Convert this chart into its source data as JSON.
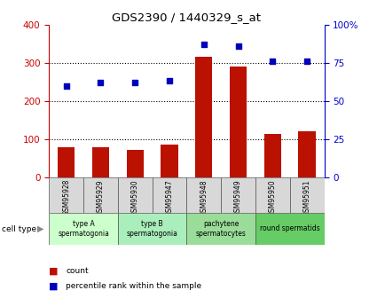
{
  "title": "GDS2390 / 1440329_s_at",
  "samples": [
    "GSM95928",
    "GSM95929",
    "GSM95930",
    "GSM95947",
    "GSM95948",
    "GSM95949",
    "GSM95950",
    "GSM95951"
  ],
  "counts": [
    78,
    78,
    73,
    85,
    315,
    290,
    115,
    120
  ],
  "percentile_ranks": [
    60,
    62,
    62,
    63,
    87,
    86,
    76,
    76
  ],
  "cell_types": [
    {
      "label": "type A\nspermatogonia",
      "span": [
        0,
        2
      ],
      "color": "#ccffcc"
    },
    {
      "label": "type B\nspermatogonia",
      "span": [
        2,
        4
      ],
      "color": "#aaeebb"
    },
    {
      "label": "pachytene\nspermatocytes",
      "span": [
        4,
        6
      ],
      "color": "#99dd99"
    },
    {
      "label": "round spermatids",
      "span": [
        6,
        8
      ],
      "color": "#66cc66"
    }
  ],
  "bar_color": "#bb1100",
  "dot_color": "#0000bb",
  "left_axis_color": "#cc0000",
  "right_axis_color": "#0000cc",
  "ylim_left": [
    0,
    400
  ],
  "ylim_right": [
    0,
    100
  ],
  "yticks_left": [
    0,
    100,
    200,
    300,
    400
  ],
  "ytick_labels_right": [
    "0",
    "25",
    "50",
    "75",
    "100%"
  ],
  "grid_vals": [
    100,
    200,
    300
  ],
  "cell_type_label": "cell type",
  "legend_items": [
    {
      "color": "#bb1100",
      "label": "count"
    },
    {
      "color": "#0000bb",
      "label": "percentile rank within the sample"
    }
  ]
}
